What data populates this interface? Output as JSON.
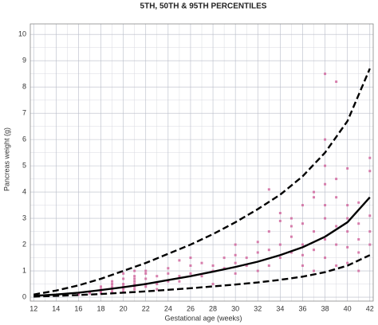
{
  "chart_data": {
    "type": "scatter",
    "title": "5TH, 50TH & 95TH PERCENTILES",
    "x_label": "Gestational age (weeks)",
    "y_label": "Pancreas weight (g)",
    "xlim": [
      11.7,
      42.3
    ],
    "ylim": [
      -0.15,
      10.4
    ],
    "xticks": [
      12,
      14,
      16,
      18,
      20,
      22,
      24,
      26,
      28,
      30,
      32,
      34,
      36,
      38,
      40,
      42
    ],
    "yticks": [
      0,
      1,
      2,
      3,
      4,
      5,
      6,
      7,
      8,
      9,
      10
    ],
    "grid": true,
    "points": {
      "color": "#d0609a",
      "x": [
        16,
        16,
        17,
        17,
        18,
        18,
        18,
        18,
        19,
        19,
        19,
        19,
        19,
        20,
        20,
        20,
        20,
        20,
        20,
        21,
        21,
        21,
        21,
        21,
        21,
        21,
        22,
        22,
        22,
        22,
        22,
        23,
        23,
        23,
        24,
        24,
        24,
        25,
        25,
        25,
        26,
        26,
        26,
        27,
        27,
        28,
        28,
        28,
        29,
        29,
        30,
        30,
        30,
        30,
        31,
        31,
        32,
        32,
        32,
        33,
        33,
        33,
        33,
        34,
        34,
        34,
        34,
        35,
        35,
        35,
        35,
        36,
        36,
        36,
        36,
        36,
        37,
        37,
        37,
        37,
        37,
        38,
        38,
        38,
        38,
        38,
        38,
        38,
        38,
        39,
        39,
        39,
        39,
        39,
        39,
        40,
        40,
        40,
        40,
        40,
        40,
        41,
        41,
        41,
        41,
        41,
        42,
        42,
        42,
        42,
        42
      ],
      "y": [
        0.1,
        0.15,
        0.15,
        0.2,
        0.2,
        0.3,
        0.15,
        0.4,
        0.2,
        0.3,
        0.5,
        0.4,
        0.6,
        0.3,
        0.5,
        0.7,
        0.9,
        0.4,
        0.2,
        0.4,
        0.6,
        0.8,
        1.0,
        0.3,
        0.5,
        0.7,
        0.4,
        0.7,
        1.0,
        0.9,
        0.5,
        0.5,
        0.8,
        0.3,
        0.6,
        0.9,
        1.1,
        1.4,
        0.6,
        0.8,
        0.9,
        1.2,
        1.5,
        0.8,
        1.3,
        1.0,
        1.2,
        0.5,
        1.1,
        1.5,
        1.3,
        1.6,
        2.0,
        0.9,
        1.5,
        1.2,
        2.1,
        1.7,
        1.0,
        4.1,
        2.5,
        1.8,
        1.2,
        2.9,
        2.0,
        1.5,
        3.2,
        3.0,
        2.3,
        1.7,
        2.7,
        3.5,
        2.8,
        2.0,
        1.6,
        1.2,
        4.0,
        3.8,
        2.5,
        1.8,
        1.0,
        8.5,
        6.0,
        5.0,
        4.3,
        3.5,
        3.0,
        2.2,
        1.5,
        8.2,
        4.5,
        3.8,
        2.7,
        2.0,
        1.2,
        4.9,
        3.5,
        3.0,
        2.5,
        1.9,
        1.3,
        3.6,
        2.8,
        2.2,
        1.7,
        1.0,
        5.3,
        4.8,
        3.1,
        2.5,
        2.0
      ]
    },
    "x": [
      12,
      14,
      16,
      18,
      20,
      22,
      24,
      26,
      28,
      30,
      32,
      34,
      36,
      38,
      40,
      42
    ],
    "series": [
      {
        "color": "#000000",
        "dashed": true,
        "values": [
          0.02,
          0.05,
          0.08,
          0.12,
          0.17,
          0.22,
          0.28,
          0.34,
          0.41,
          0.48,
          0.56,
          0.66,
          0.78,
          0.95,
          1.2,
          1.6
        ]
      },
      {
        "color": "#000000",
        "dashed": false,
        "values": [
          0.05,
          0.1,
          0.17,
          0.27,
          0.38,
          0.5,
          0.65,
          0.8,
          0.97,
          1.15,
          1.35,
          1.6,
          1.9,
          2.3,
          2.85,
          3.8
        ]
      },
      {
        "color": "#000000",
        "dashed": true,
        "values": [
          0.1,
          0.25,
          0.45,
          0.7,
          1.0,
          1.3,
          1.65,
          2.0,
          2.4,
          2.85,
          3.35,
          3.9,
          4.6,
          5.5,
          6.7,
          8.7
        ]
      }
    ]
  }
}
